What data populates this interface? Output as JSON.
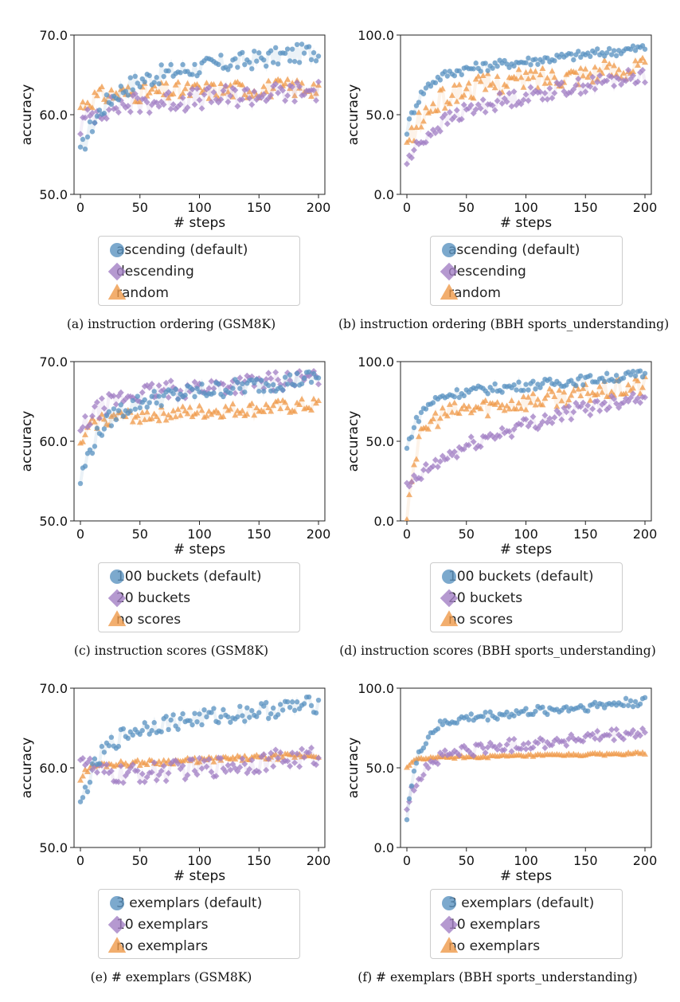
{
  "colors": {
    "ascending": "#5b93c1",
    "descending": "#a27fc4",
    "random": "#ef9a4a"
  },
  "chart_data": [
    {
      "id": "a",
      "type": "scatter",
      "caption": "(a)  instruction ordering (GSM8K)",
      "xlabel": "# steps",
      "ylabel": "accuracy",
      "xlim": [
        0,
        200
      ],
      "ylim": [
        50,
        70
      ],
      "yticks": [
        "50.0",
        "60.0",
        "70.0"
      ],
      "xticks": [
        "0",
        "50",
        "100",
        "150",
        "200"
      ],
      "legend": [
        "ascending (default)",
        "descending",
        "random"
      ],
      "series": [
        {
          "name": "ascending (default)",
          "marker": "circle",
          "start": 55,
          "plateau": 64,
          "end": 68,
          "rise": 0.05,
          "noise": 1.2
        },
        {
          "name": "descending",
          "marker": "diamond",
          "start": 58.5,
          "plateau": 61,
          "end": 63,
          "rise": 0.08,
          "noise": 1.4
        },
        {
          "name": "random",
          "marker": "triangle",
          "start": 61,
          "plateau": 62.5,
          "end": 63.5,
          "rise": 0.1,
          "noise": 1.2
        }
      ]
    },
    {
      "id": "b",
      "type": "scatter",
      "caption": "(b)  instruction ordering (BBH sports_understanding)",
      "xlabel": "# steps",
      "ylabel": "accuracy",
      "xlim": [
        0,
        200
      ],
      "ylim": [
        0,
        100
      ],
      "yticks": [
        "0.0",
        "50.0",
        "100.0"
      ],
      "xticks": [
        "0",
        "50",
        "100",
        "150",
        "200"
      ],
      "legend": [
        "ascending (default)",
        "descending",
        "random"
      ],
      "series": [
        {
          "name": "ascending (default)",
          "marker": "circle",
          "start": 40,
          "plateau": 75,
          "end": 92,
          "rise": 0.08,
          "noise": 3
        },
        {
          "name": "descending",
          "marker": "diamond",
          "start": 20,
          "plateau": 50,
          "end": 75,
          "rise": 0.04,
          "noise": 5
        },
        {
          "name": "random",
          "marker": "triangle",
          "start": 30,
          "plateau": 65,
          "end": 80,
          "rise": 0.05,
          "noise": 7
        }
      ]
    },
    {
      "id": "c",
      "type": "scatter",
      "caption": "(c)  instruction scores (GSM8K)",
      "xlabel": "# steps",
      "ylabel": "accuracy",
      "xlim": [
        0,
        200
      ],
      "ylim": [
        50,
        70
      ],
      "yticks": [
        "50.0",
        "60.0",
        "70.0"
      ],
      "xticks": [
        "0",
        "50",
        "100",
        "150",
        "200"
      ],
      "legend": [
        "100 buckets (default)",
        "20 buckets",
        "no scores"
      ],
      "series": [
        {
          "name": "100 buckets (default)",
          "marker": "circle",
          "start": 55,
          "plateau": 64.5,
          "end": 68,
          "rise": 0.06,
          "noise": 1.1
        },
        {
          "name": "20 buckets",
          "marker": "diamond",
          "start": 61,
          "plateau": 65.5,
          "end": 68,
          "rise": 0.06,
          "noise": 1.2
        },
        {
          "name": "no scores",
          "marker": "triangle",
          "start": 59,
          "plateau": 62.8,
          "end": 64.5,
          "rise": 0.15,
          "noise": 0.9
        }
      ]
    },
    {
      "id": "d",
      "type": "scatter",
      "caption": "(d)  instruction scores (BBH sports_understanding)",
      "xlabel": "# steps",
      "ylabel": "accuracy",
      "xlim": [
        0,
        200
      ],
      "ylim": [
        0,
        100
      ],
      "yticks": [
        "0.0",
        "50.0",
        "100.0"
      ],
      "xticks": [
        "0",
        "50",
        "100",
        "150",
        "200"
      ],
      "legend": [
        "100 buckets (default)",
        "20 buckets",
        "no scores"
      ],
      "series": [
        {
          "name": "100 buckets (default)",
          "marker": "circle",
          "start": 45,
          "plateau": 78,
          "end": 92,
          "rise": 0.09,
          "noise": 3
        },
        {
          "name": "20 buckets",
          "marker": "diamond",
          "start": 20,
          "plateau": 45,
          "end": 80,
          "rise": 0.025,
          "noise": 5
        },
        {
          "name": "no scores",
          "marker": "triangle",
          "start": 5,
          "plateau": 65,
          "end": 85,
          "rise": 0.12,
          "noise": 6
        }
      ]
    },
    {
      "id": "e",
      "type": "scatter",
      "caption": "(e)  # exemplars (GSM8K)",
      "xlabel": "# steps",
      "ylabel": "accuracy",
      "xlim": [
        0,
        200
      ],
      "ylim": [
        50,
        70
      ],
      "yticks": [
        "50.0",
        "60.0",
        "70.0"
      ],
      "xticks": [
        "0",
        "50",
        "100",
        "150",
        "200"
      ],
      "legend": [
        "3 exemplars (default)",
        "10 exemplars",
        "no exemplars"
      ],
      "series": [
        {
          "name": "3 exemplars (default)",
          "marker": "circle",
          "start": 55,
          "plateau": 64.5,
          "end": 68,
          "rise": 0.06,
          "noise": 1.1
        },
        {
          "name": "10 exemplars",
          "marker": "diamond",
          "start": 62,
          "plateau": 58.5,
          "end": 61.5,
          "rise": 0.1,
          "noise": 1.3
        },
        {
          "name": "no exemplars",
          "marker": "triangle",
          "start": 58.5,
          "plateau": 60.3,
          "end": 61.6,
          "rise": 0.2,
          "noise": 0.35
        }
      ]
    },
    {
      "id": "f",
      "type": "scatter",
      "caption": "(f)  # exemplars (BBH sports_understanding)",
      "xlabel": "# steps",
      "ylabel": "accuracy",
      "xlim": [
        0,
        200
      ],
      "ylim": [
        0,
        100
      ],
      "yticks": [
        "0.0",
        "50.0",
        "100.0"
      ],
      "xticks": [
        "0",
        "50",
        "100",
        "150",
        "200"
      ],
      "legend": [
        "3 exemplars (default)",
        "10 exemplars",
        "no exemplars"
      ],
      "series": [
        {
          "name": "3 exemplars (default)",
          "marker": "circle",
          "start": 20,
          "plateau": 78,
          "end": 92,
          "rise": 0.1,
          "noise": 3
        },
        {
          "name": "10 exemplars",
          "marker": "diamond",
          "start": 25,
          "plateau": 58,
          "end": 72,
          "rise": 0.08,
          "noise": 4
        },
        {
          "name": "no exemplars",
          "marker": "triangle",
          "start": 50,
          "plateau": 56,
          "end": 59,
          "rise": 0.2,
          "noise": 0.8
        }
      ]
    }
  ]
}
